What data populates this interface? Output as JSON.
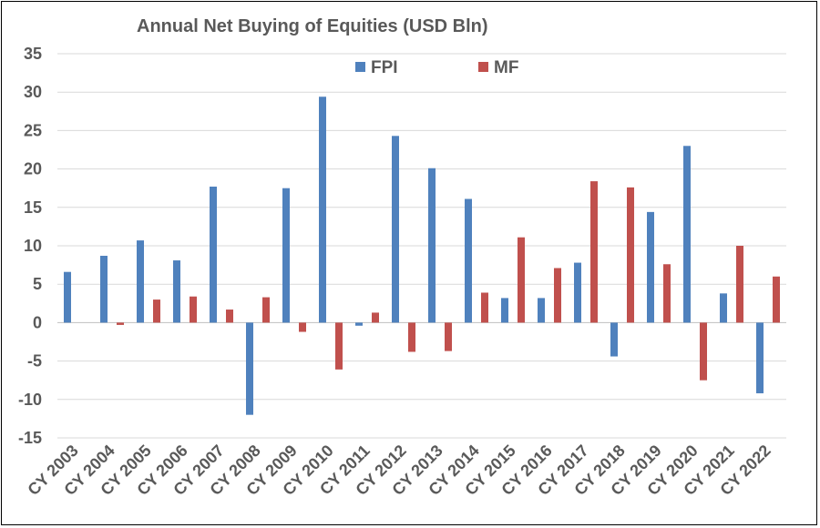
{
  "chart_data": {
    "type": "bar",
    "title": "Annual Net Buying of Equities (USD Bln)",
    "xlabel": "",
    "ylabel": "",
    "ylim": [
      -15,
      35
    ],
    "yticks": [
      35,
      30,
      25,
      20,
      15,
      10,
      5,
      0,
      -5,
      -10,
      -15
    ],
    "grid": true,
    "legend_position": "top-center",
    "categories": [
      "CY 2003",
      "CY 2004",
      "CY 2005",
      "CY 2006",
      "CY 2007",
      "CY 2008",
      "CY 2009",
      "CY 2010",
      "CY 2011",
      "CY 2012",
      "CY 2013",
      "CY 2014",
      "CY 2015",
      "CY 2016",
      "CY 2017",
      "CY 2018",
      "CY 2019",
      "CY 2020",
      "CY 2021",
      "CY 2022"
    ],
    "series": [
      {
        "name": "FPI",
        "color": "#4f81bd",
        "values": [
          6.6,
          8.7,
          10.7,
          8.1,
          17.7,
          -12.0,
          17.5,
          29.4,
          -0.4,
          24.3,
          20.1,
          16.1,
          3.2,
          3.2,
          7.8,
          -4.4,
          14.4,
          23.0,
          3.8,
          -9.2
        ]
      },
      {
        "name": "MF",
        "color": "#c0504d",
        "values": [
          0.0,
          -0.3,
          3.0,
          3.4,
          1.7,
          3.3,
          -1.2,
          -6.1,
          1.3,
          -3.8,
          -3.7,
          3.9,
          11.1,
          7.1,
          18.4,
          17.6,
          7.6,
          -7.5,
          10.0,
          6.0
        ]
      }
    ]
  }
}
